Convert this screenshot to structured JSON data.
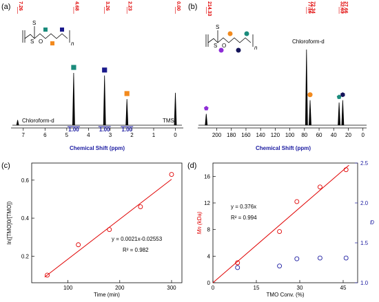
{
  "panels": {
    "a": "(a)",
    "b": "(b)",
    "c": "(c)",
    "d": "(d)"
  },
  "chart_data": [
    {
      "type": "line",
      "panel": "(a)",
      "xlabel": "Chemical Shift (ppm)",
      "xlim": [
        7.5,
        -0.3
      ],
      "xticks": [
        7,
        6,
        5,
        4,
        3,
        2,
        1,
        0
      ],
      "peak_labels": [
        "7.26",
        "4.68",
        "3.26",
        "2.23",
        "0.00"
      ],
      "peaks": [
        {
          "x": 7.26,
          "h": 0.1
        },
        {
          "x": 4.68,
          "h": 1.0
        },
        {
          "x": 3.26,
          "h": 0.95
        },
        {
          "x": 2.23,
          "h": 0.5
        },
        {
          "x": 0.0,
          "h": 0.62
        }
      ],
      "integrals": [
        "1.00",
        "1.00",
        "1.00"
      ],
      "annotations": {
        "solvent": "Chloroform-d",
        "ref": "TMS",
        "n": "n"
      },
      "markers": [
        {
          "x": 4.68,
          "color": "#1a8b7c",
          "shape": "square"
        },
        {
          "x": 3.26,
          "color": "#1a1a8c",
          "shape": "square"
        },
        {
          "x": 2.23,
          "color": "#f28a1e",
          "shape": "square"
        }
      ]
    },
    {
      "type": "line",
      "panel": "(b)",
      "xlabel": "Chemical Shift (ppm)",
      "xlim": [
        225,
        -5
      ],
      "xticks": [
        200,
        180,
        160,
        140,
        120,
        100,
        80,
        60,
        40,
        20,
        0
      ],
      "peak_labels": [
        "214.33",
        "77.16",
        "72.34",
        "32.63",
        "27.66"
      ],
      "peaks": [
        {
          "x": 214.33,
          "h": 0.15
        },
        {
          "x": 77.16,
          "h": 1.0
        },
        {
          "x": 72.34,
          "h": 0.33
        },
        {
          "x": 32.63,
          "h": 0.3
        },
        {
          "x": 27.66,
          "h": 0.33
        }
      ],
      "annotations": {
        "solvent": "Chloroform-d",
        "n": "n"
      },
      "markers": [
        {
          "x": 214.33,
          "color": "#8e2dd6",
          "shape": "pentagon"
        },
        {
          "x": 72.34,
          "color": "#f28a1e",
          "shape": "circle"
        },
        {
          "x": 32.63,
          "color": "#1a8b7c",
          "shape": "pentagon"
        },
        {
          "x": 27.66,
          "color": "#14145a",
          "shape": "hexagon"
        }
      ]
    },
    {
      "type": "scatter",
      "panel": "(c)",
      "xlabel": "Time (min)",
      "ylabel": "ln([TMO]0/[TMO])",
      "xlim": [
        30,
        320
      ],
      "ylim": [
        0.06,
        0.69
      ],
      "xticks": [
        100,
        200,
        300
      ],
      "yticks": [
        0.2,
        0.4,
        0.6
      ],
      "x": [
        60,
        120,
        180,
        240,
        300
      ],
      "y": [
        0.1,
        0.26,
        0.34,
        0.46,
        0.63
      ],
      "fit": {
        "slope": 0.0021,
        "intercept": -0.02553,
        "x_range": [
          55,
          300
        ]
      },
      "equation": "y = 0.0021x-0.02553",
      "r2": "R² = 0.982"
    },
    {
      "type": "scatter",
      "panel": "(d)",
      "xlabel": "TMO Conv. (%)",
      "ylabel": "Mn (kDa)",
      "y2label": "Đ",
      "xlim": [
        0,
        50
      ],
      "ylim": [
        0,
        18
      ],
      "y2lim": [
        1.0,
        2.5
      ],
      "xticks": [
        0,
        15,
        30,
        45
      ],
      "yticks": [
        0,
        4,
        8,
        12,
        16
      ],
      "y2ticks": [
        1.0,
        1.5,
        2.0,
        2.5
      ],
      "series": [
        {
          "name": "Mn",
          "axis": "left",
          "color": "#e00000",
          "x": [
            8.5,
            23,
            29,
            37,
            46
          ],
          "y": [
            3.0,
            7.7,
            12.2,
            14.4,
            17.0
          ]
        },
        {
          "name": "Đ",
          "axis": "right",
          "color": "#1a1aa0",
          "x": [
            8.5,
            23,
            29,
            37,
            46
          ],
          "y": [
            1.19,
            1.21,
            1.3,
            1.31,
            1.31
          ]
        }
      ],
      "fit": {
        "slope": 0.376,
        "intercept": 0,
        "x_range": [
          0,
          47
        ]
      },
      "equation": "y = 0.376x",
      "r2": "R² = 0.994"
    }
  ]
}
